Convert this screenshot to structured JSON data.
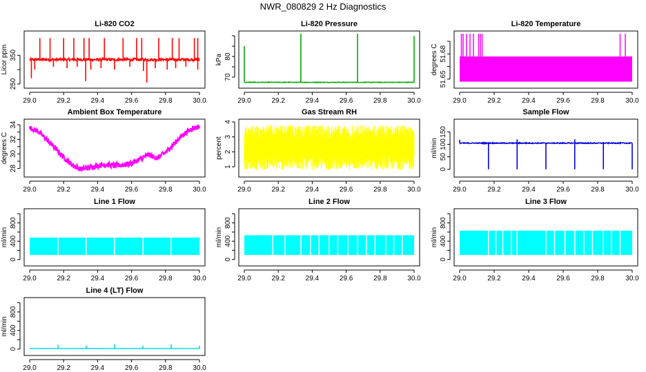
{
  "figure": {
    "title": "NWR_080829  2 Hz Diagnostics"
  },
  "chart_data": [
    {
      "id": "co2",
      "type": "line",
      "title": "Li-820 CO2",
      "ylabel": "Licor ppm",
      "color": "#ff0000",
      "xlim": [
        29.0,
        30.0
      ],
      "ylim": [
        245,
        425
      ],
      "x_ticks": [
        29.0,
        29.2,
        29.4,
        29.6,
        29.8,
        30.0
      ],
      "y_ticks": [
        250,
        300,
        350
      ],
      "y_tick_labels": [
        "250",
        "",
        "350"
      ],
      "series": [
        {
          "baseline": 335,
          "noise": 5,
          "spikes": [
            [
              29.06,
              410
            ],
            [
              29.12,
              410
            ],
            [
              29.2,
              410
            ],
            [
              29.26,
              410
            ],
            [
              29.32,
              410
            ],
            [
              29.35,
              410
            ],
            [
              29.44,
              410
            ],
            [
              29.55,
              410
            ],
            [
              29.63,
              410
            ],
            [
              29.66,
              410
            ],
            [
              29.76,
              410
            ],
            [
              29.84,
              410
            ],
            [
              29.88,
              410
            ],
            [
              29.97,
              410
            ],
            [
              29.99,
              410
            ]
          ],
          "dips": [
            [
              29.01,
              270
            ],
            [
              29.03,
              300
            ],
            [
              29.14,
              310
            ],
            [
              29.22,
              305
            ],
            [
              29.28,
              310
            ],
            [
              29.33,
              260
            ],
            [
              29.36,
              300
            ],
            [
              29.42,
              305
            ],
            [
              29.5,
              300
            ],
            [
              29.59,
              310
            ],
            [
              29.67,
              295
            ],
            [
              29.69,
              255
            ],
            [
              29.74,
              305
            ],
            [
              29.81,
              300
            ],
            [
              29.86,
              305
            ],
            [
              29.92,
              310
            ],
            [
              29.99,
              300
            ]
          ]
        }
      ]
    },
    {
      "id": "pressure",
      "type": "line",
      "title": "Li-820 Pressure",
      "ylabel": "kPa",
      "color": "#00aa00",
      "xlim": [
        29.0,
        30.0
      ],
      "ylim": [
        66,
        91
      ],
      "x_ticks": [
        29.0,
        29.2,
        29.4,
        29.6,
        29.8,
        30.0
      ],
      "y_ticks": [
        70,
        75,
        80,
        85,
        90
      ],
      "y_tick_labels": [
        "70",
        "",
        "80",
        "",
        ""
      ],
      "series": [
        {
          "baseline": 67.5,
          "noise": 0.15,
          "spikes": [
            [
              29.0,
              85
            ],
            [
              29.333,
              91
            ],
            [
              29.667,
              91
            ],
            [
              30.0,
              90
            ]
          ],
          "dips": []
        }
      ]
    },
    {
      "id": "li820_temp",
      "type": "area",
      "title": "Li-820 Temperature",
      "ylabel": "degrees C",
      "color": "#ff00ff",
      "xlim": [
        29.0,
        30.0
      ],
      "ylim": [
        51.645,
        51.686
      ],
      "x_ticks": [
        29.0,
        29.2,
        29.4,
        29.6,
        29.8,
        30.0
      ],
      "y_ticks": [
        51.65,
        51.66,
        51.67,
        51.68
      ],
      "y_tick_labels": [
        "51.65",
        "",
        "51.68",
        ""
      ],
      "series": [
        {
          "band": [
            51.648,
            51.668
          ],
          "spikes_top": 51.686,
          "spikes": [
            29.01,
            29.02,
            29.04,
            29.06,
            29.08,
            29.11,
            29.12,
            29.13,
            29.93,
            29.96
          ]
        }
      ]
    },
    {
      "id": "ambient",
      "type": "line",
      "title": "Ambient Box Temperature",
      "ylabel": "degrees C",
      "color": "#ff00ff",
      "xlim": [
        29.0,
        30.0
      ],
      "ylim": [
        27.2,
        34.4
      ],
      "x_ticks": [
        29.0,
        29.2,
        29.4,
        29.6,
        29.8,
        30.0
      ],
      "y_ticks": [
        28,
        29,
        30,
        31,
        32,
        33,
        34
      ],
      "y_tick_labels": [
        "28",
        "",
        "30",
        "",
        "32",
        "",
        "34"
      ],
      "series": [
        {
          "points": [
            [
              29.0,
              33.6
            ],
            [
              29.05,
              33.1
            ],
            [
              29.1,
              32.0
            ],
            [
              29.15,
              30.8
            ],
            [
              29.2,
              29.5
            ],
            [
              29.25,
              28.5
            ],
            [
              29.3,
              27.9
            ],
            [
              29.35,
              28.1
            ],
            [
              29.4,
              28.4
            ],
            [
              29.45,
              28.5
            ],
            [
              29.5,
              28.4
            ],
            [
              29.55,
              28.5
            ],
            [
              29.6,
              28.7
            ],
            [
              29.65,
              29.3
            ],
            [
              29.7,
              29.9
            ],
            [
              29.75,
              29.4
            ],
            [
              29.8,
              30.2
            ],
            [
              29.85,
              31.4
            ],
            [
              29.9,
              32.6
            ],
            [
              29.95,
              33.4
            ],
            [
              30.0,
              33.8
            ]
          ],
          "noise": 0.35
        }
      ]
    },
    {
      "id": "rh",
      "type": "area",
      "title": "Gas Stream RH",
      "ylabel": "percent",
      "color": "#ffff00",
      "xlim": [
        29.0,
        30.0
      ],
      "ylim": [
        0.5,
        4.0
      ],
      "x_ticks": [
        29.0,
        29.2,
        29.4,
        29.6,
        29.8,
        30.0
      ],
      "y_ticks": [
        1,
        2,
        3,
        4
      ],
      "y_tick_labels": [
        "1",
        "2",
        "3",
        "4"
      ],
      "series": [
        {
          "band": [
            0.8,
            3.8
          ],
          "center": 2.3
        }
      ]
    },
    {
      "id": "sample_flow",
      "type": "line",
      "title": "Sample Flow",
      "ylabel": "ml/min",
      "color": "#0000dd",
      "xlim": [
        29.0,
        30.0
      ],
      "ylim": [
        -20,
        190
      ],
      "x_ticks": [
        29.0,
        29.2,
        29.4,
        29.6,
        29.8,
        30.0
      ],
      "y_ticks": [
        0,
        50,
        100,
        150
      ],
      "y_tick_labels": [
        "0",
        "50",
        "100",
        "150"
      ],
      "series": [
        {
          "baseline": 105,
          "noise": 2,
          "spikes": [
            [
              29.0,
              118
            ],
            [
              29.333,
              120
            ],
            [
              29.667,
              120
            ]
          ],
          "dips": [
            [
              29.167,
              0
            ],
            [
              29.333,
              0
            ],
            [
              29.5,
              0
            ],
            [
              29.667,
              0
            ],
            [
              29.833,
              0
            ],
            [
              30.0,
              0
            ]
          ]
        }
      ]
    },
    {
      "id": "line1",
      "type": "area",
      "title": "Line 1 Flow",
      "ylabel": "ml/min",
      "color": "#00ffff",
      "xlim": [
        29.0,
        30.0
      ],
      "ylim": [
        -80,
        1050
      ],
      "x_ticks": [
        29.0,
        29.2,
        29.4,
        29.6,
        29.8,
        30.0
      ],
      "y_ticks": [
        0,
        200,
        400,
        600,
        800,
        1000
      ],
      "y_tick_labels": [
        "0",
        "",
        "400",
        "",
        "800",
        ""
      ],
      "series": [
        {
          "band": [
            100,
            480
          ],
          "gaps": [
            29.167,
            29.333,
            29.5,
            29.667,
            29.833
          ]
        }
      ]
    },
    {
      "id": "line2",
      "type": "area",
      "title": "Line 2 Flow",
      "ylabel": "ml/min",
      "color": "#00ffff",
      "xlim": [
        29.0,
        30.0
      ],
      "ylim": [
        -80,
        1050
      ],
      "x_ticks": [
        29.0,
        29.2,
        29.4,
        29.6,
        29.8,
        30.0
      ],
      "y_ticks": [
        0,
        200,
        400,
        600,
        800,
        1000
      ],
      "y_tick_labels": [
        "0",
        "",
        "400",
        "",
        "800",
        ""
      ],
      "series": [
        {
          "band": [
            100,
            530
          ],
          "gaps": [
            29.167,
            29.24,
            29.333,
            29.39,
            29.44,
            29.5,
            29.55,
            29.61,
            29.667,
            29.72,
            29.77,
            29.833,
            29.88,
            29.93
          ]
        }
      ]
    },
    {
      "id": "line3",
      "type": "area",
      "title": "Line 3 Flow",
      "ylabel": "ml/min",
      "color": "#00ffff",
      "xlim": [
        29.0,
        30.0
      ],
      "ylim": [
        -80,
        1050
      ],
      "x_ticks": [
        29.0,
        29.2,
        29.4,
        29.6,
        29.8,
        30.0
      ],
      "y_ticks": [
        0,
        200,
        400,
        600,
        800,
        1000
      ],
      "y_tick_labels": [
        "0",
        "",
        "400",
        "",
        "800",
        ""
      ],
      "series": [
        {
          "band": [
            100,
            630
          ],
          "gaps": [
            29.167,
            29.21,
            29.25,
            29.3,
            29.333,
            29.5,
            29.55,
            29.61,
            29.667,
            29.72,
            29.77,
            29.833,
            29.88,
            29.93
          ]
        }
      ]
    },
    {
      "id": "line4",
      "type": "line",
      "title": "Line 4 (LT) Flow",
      "ylabel": "ml/min",
      "color": "#00dddd",
      "xlim": [
        29.0,
        30.0
      ],
      "ylim": [
        -80,
        1050
      ],
      "x_ticks": [
        29.0,
        29.2,
        29.4,
        29.6,
        29.8,
        30.0
      ],
      "y_ticks": [
        0,
        200,
        400,
        600,
        800,
        1000
      ],
      "y_tick_labels": [
        "0",
        "",
        "400",
        "",
        "800",
        ""
      ],
      "series": [
        {
          "baseline": 10,
          "noise": 2,
          "spikes": [
            [
              29.167,
              90
            ],
            [
              29.333,
              70
            ],
            [
              29.5,
              100
            ],
            [
              29.667,
              70
            ],
            [
              29.833,
              100
            ],
            [
              30.0,
              70
            ]
          ],
          "dips": []
        }
      ]
    }
  ]
}
